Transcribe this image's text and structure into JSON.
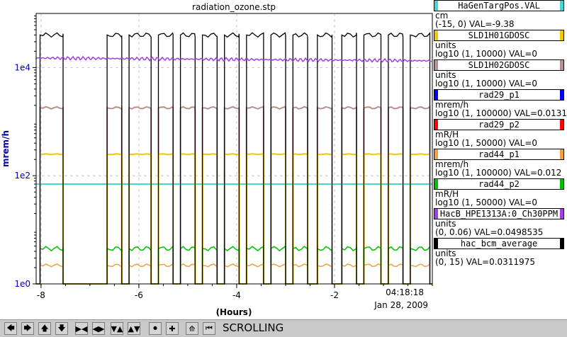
{
  "chart_data": {
    "type": "line",
    "title": "radiation_ozone.stp",
    "xlabel": "(Hours)",
    "ylabel": "mrem/h",
    "y_scale": "log",
    "ylim": [
      1,
      100000
    ],
    "xlim": [
      -8.1,
      0
    ],
    "x_ticks": [
      "-8",
      "-6",
      "-4",
      "-2"
    ],
    "y_ticks": [
      "1e0",
      "1e2",
      "1e4"
    ],
    "grid": true,
    "series": [
      {
        "name": "HaGenTargPos.VAL",
        "color": "#40d8d0",
        "approx_level": 70
      },
      {
        "name": "SLD1H01GDOSC",
        "color": "#f0c800",
        "approx_level": 250
      },
      {
        "name": "SLD1H02GDOSC",
        "color": "#b89090",
        "approx_level": 1800
      },
      {
        "name": "rad29_p1",
        "color": "#0000ff"
      },
      {
        "name": "rad29_p2",
        "color": "#ff0000"
      },
      {
        "name": "rad44_p1",
        "color": "#f0a040",
        "approx_level": 2.2
      },
      {
        "name": "rad44_p2",
        "color": "#00c000",
        "approx_level": 4.5
      },
      {
        "name": "HacB_HPE1313A:0_Ch30PPM",
        "color": "#a040e0",
        "approx_level": 15000
      },
      {
        "name": "hac_bcm_average",
        "color": "#000000",
        "approx_level": 40000
      }
    ]
  },
  "plot": {
    "title": "radiation_ozone.stp",
    "xlabel": "(Hours)",
    "ylabel": "mrem/h",
    "timestamp_time": "04:18:18",
    "timestamp_date": "Jan 28, 2009",
    "x_tick_labels": [
      "-8",
      "-6",
      "-4",
      "-2"
    ],
    "y_tick_labels": [
      "1e0",
      "1e2",
      "1e4"
    ]
  },
  "legend": [
    {
      "name": "HaGenTargPos.VAL",
      "color": "#40d8d0",
      "unit": "cm",
      "info": "(-15, 0) VAL=-9.38"
    },
    {
      "name": "SLD1H01GDOSC",
      "color": "#f0c800",
      "unit": "units",
      "info": "log10 (1, 10000) VAL=0"
    },
    {
      "name": "SLD1H02GDOSC",
      "color": "#b89090",
      "unit": "units",
      "info": "log10 (1, 10000) VAL=0"
    },
    {
      "name": "rad29_p1",
      "color": "#0000ff",
      "unit": "mrem/h",
      "info": "log10 (1, 100000) VAL=0.0131"
    },
    {
      "name": "rad29_p2",
      "color": "#ff0000",
      "unit": "mR/H",
      "info": "log10 (1, 50000) VAL=0"
    },
    {
      "name": "rad44_p1",
      "color": "#f0a040",
      "unit": "mrem/h",
      "info": "log10 (1, 100000) VAL=0.012"
    },
    {
      "name": "rad44_p2",
      "color": "#00c000",
      "unit": "mR/H",
      "info": "log10 (1, 50000) VAL=0"
    },
    {
      "name": "HacB_HPE1313A:0_Ch30PPM",
      "color": "#a040e0",
      "unit": "units",
      "info": "(0, 0.06) VAL=0.0498535"
    },
    {
      "name": "hac_bcm_average",
      "color": "#000000",
      "unit": "units",
      "info": "(0, 15) VAL=0.0311975"
    }
  ],
  "toolbar": {
    "status_label": "SCROLLING",
    "buttons": [
      {
        "name": "arrow-left-icon",
        "glyph": "🡄"
      },
      {
        "name": "arrow-right-icon",
        "glyph": "🡆"
      },
      {
        "name": "arrow-up-icon",
        "glyph": "🡅"
      },
      {
        "name": "arrow-down-icon",
        "glyph": "🡇"
      },
      {
        "name": "expand-horizontal-icon",
        "glyph": "▶◀"
      },
      {
        "name": "compress-horizontal-icon",
        "glyph": "◀▶"
      },
      {
        "name": "expand-vertical-icon",
        "glyph": "▼▲"
      },
      {
        "name": "compress-vertical-icon",
        "glyph": "▲▼"
      },
      {
        "name": "stop-icon",
        "glyph": "⏺"
      },
      {
        "name": "plus-icon",
        "glyph": "✚"
      },
      {
        "name": "graph-icon",
        "glyph": "⟰"
      },
      {
        "name": "previous-icon",
        "glyph": "⏮"
      }
    ]
  }
}
